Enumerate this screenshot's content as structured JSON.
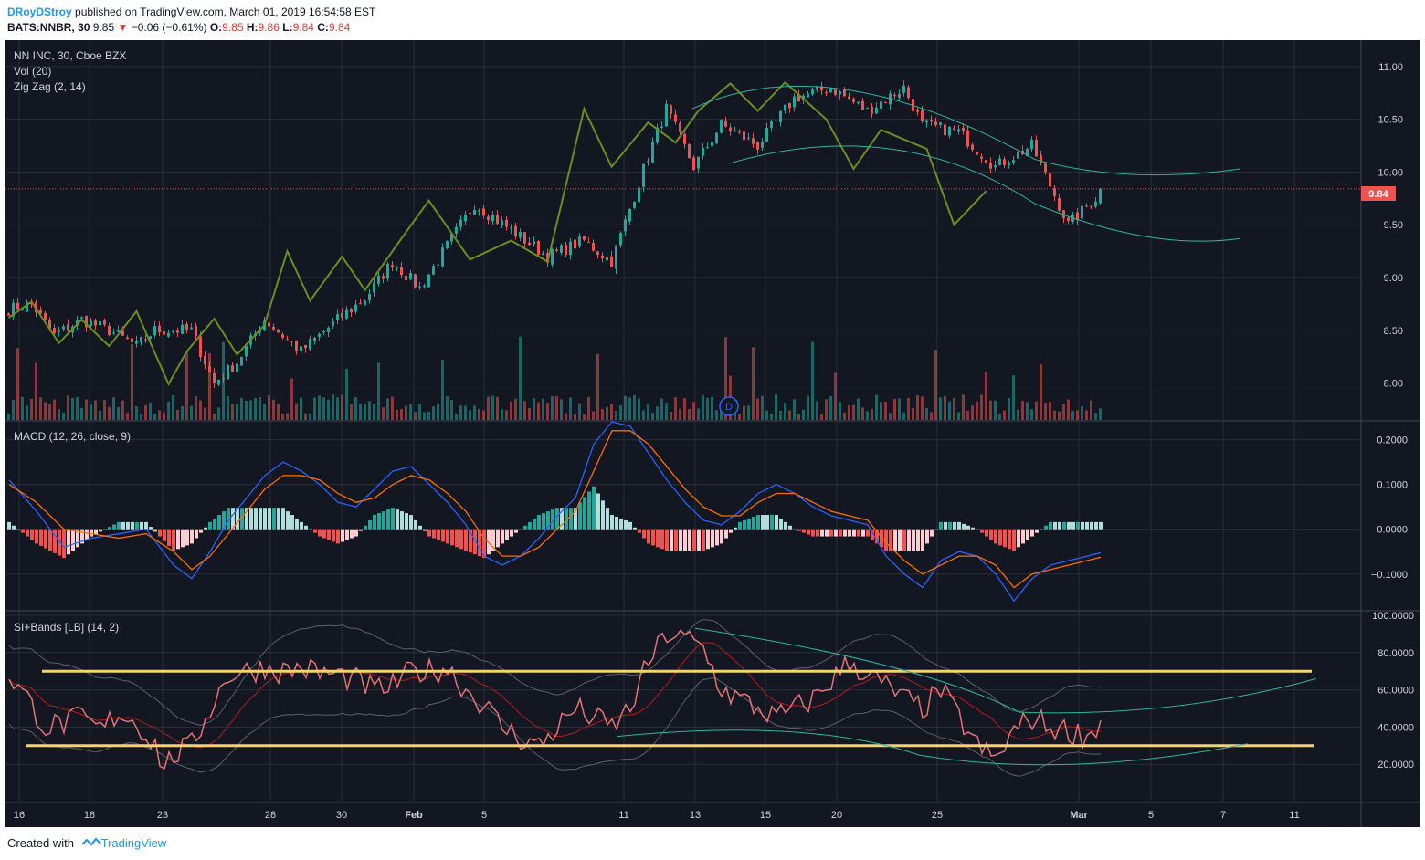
{
  "header": {
    "author": "DRoyDStroy",
    "published": "published on TradingView.com, March 01, 2019 16:54:58 EST",
    "symbol": "BATS:NNBR, 30",
    "last": "9.85",
    "change": "−0.06 (−0.61%)",
    "o_label": "O:",
    "o": "9.85",
    "h_label": "H:",
    "h": "9.86",
    "l_label": "L:",
    "l": "9.84",
    "c_label": "C:",
    "c": "9.84"
  },
  "legend": {
    "title": "NN INC, 30, Cboe BZX",
    "vol": "Vol (20)",
    "zigzag": "Zig Zag (2, 14)",
    "macd": "MACD (12, 26, close, 9)",
    "si": "SI+Bands [LB] (14, 2)",
    "vol_marker": "D"
  },
  "footer": {
    "created_with": "Created with",
    "brand": "TradingView"
  },
  "colors": {
    "background": "#131722",
    "grid": "#2a2e39",
    "up": "#26a69a",
    "down": "#ef5350",
    "zigzag": "#6b8e23",
    "channel": "#2bb5a0",
    "macd_line": "#2962ff",
    "signal_line": "#ff6d00",
    "si_line": "#e57373",
    "level_line": "#f6d36b",
    "price_tag": "#ef5350"
  },
  "chart_data": [
    {
      "type": "candlestick",
      "title": "NN INC, 30, Cboe BZX",
      "ylim": [
        7.65,
        11.25
      ],
      "y_ticks": [
        "11.00",
        "10.50",
        "10.00",
        "9.50",
        "9.00",
        "8.50",
        "8.00"
      ],
      "x_tick_labels": [
        "16",
        "18",
        "23",
        "28",
        "30",
        "Feb",
        "5",
        "11",
        "13",
        "15",
        "20",
        "25",
        "Mar",
        "5",
        "7",
        "11"
      ],
      "last_price": "9.84",
      "close_path_x": [
        0,
        5,
        10,
        16,
        22,
        28,
        32,
        40,
        45,
        50,
        56,
        64,
        72,
        78,
        84,
        90,
        96,
        102,
        110,
        118,
        126,
        132,
        140,
        144,
        150,
        156,
        164,
        172,
        180,
        188,
        196,
        200,
        208,
        216,
        224,
        232,
        240
      ],
      "close_path_y": [
        8.7,
        8.75,
        8.45,
        8.6,
        8.5,
        8.35,
        8.5,
        8.5,
        8.0,
        8.2,
        8.6,
        8.3,
        8.6,
        8.8,
        9.15,
        8.9,
        9.3,
        9.7,
        9.45,
        9.2,
        9.35,
        9.15,
        10.15,
        10.6,
        10.05,
        10.45,
        10.25,
        10.7,
        10.8,
        10.58,
        10.8,
        10.45,
        10.38,
        10.05,
        10.25,
        9.5,
        9.84
      ],
      "zigzag_x": [
        0,
        5,
        11,
        16,
        22,
        28,
        35,
        39,
        45,
        50,
        56,
        61,
        66,
        73,
        78,
        86,
        92,
        101,
        110,
        118,
        126,
        132,
        140,
        146,
        151,
        158,
        164,
        170,
        179,
        185,
        191,
        201,
        207,
        214,
        220,
        227,
        232,
        236
      ],
      "zigzag_y": [
        8.62,
        8.77,
        8.38,
        8.6,
        8.35,
        8.68,
        7.99,
        8.3,
        8.61,
        8.27,
        8.55,
        9.25,
        8.78,
        9.2,
        8.88,
        9.37,
        9.73,
        9.17,
        9.35,
        9.15,
        10.6,
        10.05,
        10.47,
        10.28,
        10.58,
        10.84,
        10.58,
        10.85,
        10.5,
        10.03,
        10.4,
        10.22,
        9.5,
        9.82,
        9.82,
        9.82,
        9.82,
        9.82
      ]
    },
    {
      "type": "bar",
      "title": "Vol (20)",
      "note": "volume histogram in price pane"
    },
    {
      "type": "line",
      "title": "MACD (12, 26, close, 9)",
      "ylim": [
        -0.18,
        0.24
      ],
      "y_ticks": [
        "0.2000",
        "0.1000",
        "0.0000",
        "−0.1000"
      ],
      "macd_x": [
        0,
        6,
        12,
        18,
        24,
        30,
        36,
        40,
        44,
        48,
        52,
        56,
        60,
        64,
        68,
        72,
        76,
        80,
        84,
        88,
        92,
        96,
        100,
        104,
        108,
        112,
        116,
        120,
        124,
        128,
        132,
        136,
        140,
        144,
        148,
        152,
        156,
        160,
        164,
        168,
        172,
        176,
        180,
        184,
        188,
        192,
        196,
        200,
        204,
        208,
        212,
        216,
        220,
        224,
        228,
        232,
        236,
        240
      ],
      "macd_y": [
        0.11,
        0.04,
        -0.04,
        -0.02,
        -0.01,
        -0.0,
        -0.08,
        -0.11,
        -0.05,
        0.02,
        0.07,
        0.12,
        0.15,
        0.13,
        0.1,
        0.06,
        0.05,
        0.09,
        0.13,
        0.14,
        0.1,
        0.06,
        0.01,
        -0.06,
        -0.08,
        -0.06,
        -0.02,
        0.03,
        0.07,
        0.19,
        0.24,
        0.23,
        0.17,
        0.11,
        0.06,
        0.02,
        0.01,
        0.04,
        0.08,
        0.1,
        0.08,
        0.05,
        0.03,
        0.02,
        0.01,
        -0.06,
        -0.1,
        -0.13,
        -0.07,
        -0.05,
        -0.06,
        -0.1,
        -0.16,
        -0.11,
        -0.08,
        -0.07,
        -0.06,
        -0.05
      ],
      "signal_x": [
        0,
        6,
        12,
        18,
        24,
        30,
        36,
        40,
        44,
        48,
        52,
        56,
        60,
        64,
        68,
        72,
        76,
        80,
        84,
        88,
        92,
        96,
        100,
        104,
        108,
        112,
        116,
        120,
        124,
        128,
        132,
        136,
        140,
        144,
        148,
        152,
        156,
        160,
        164,
        168,
        172,
        176,
        180,
        184,
        188,
        192,
        196,
        200,
        204,
        208,
        212,
        216,
        220,
        224,
        228,
        232,
        236,
        240
      ],
      "signal_y": [
        0.1,
        0.06,
        0.0,
        -0.01,
        -0.02,
        -0.01,
        -0.05,
        -0.09,
        -0.06,
        -0.01,
        0.04,
        0.09,
        0.12,
        0.12,
        0.11,
        0.08,
        0.06,
        0.07,
        0.1,
        0.12,
        0.11,
        0.08,
        0.04,
        -0.02,
        -0.06,
        -0.06,
        -0.04,
        0.0,
        0.04,
        0.13,
        0.22,
        0.22,
        0.19,
        0.14,
        0.09,
        0.05,
        0.03,
        0.03,
        0.06,
        0.08,
        0.08,
        0.06,
        0.04,
        0.03,
        0.02,
        -0.03,
        -0.07,
        -0.1,
        -0.08,
        -0.06,
        -0.06,
        -0.08,
        -0.13,
        -0.1,
        -0.09,
        -0.08,
        -0.07,
        -0.06
      ],
      "histogram_sign_hint": "MACD minus signal"
    },
    {
      "type": "line",
      "title": "SI+Bands [LB] (14, 2)",
      "ylim": [
        0,
        100
      ],
      "y_ticks": [
        "100.0000",
        "80.0000",
        "60.0000",
        "40.0000",
        "20.0000"
      ],
      "si_x": [
        0,
        4,
        8,
        12,
        16,
        20,
        24,
        28,
        32,
        34,
        36,
        40,
        44,
        48,
        52,
        56,
        60,
        64,
        68,
        72,
        76,
        80,
        84,
        88,
        92,
        96,
        100,
        104,
        108,
        112,
        116,
        120,
        124,
        128,
        132,
        136,
        140,
        144,
        148,
        152,
        156,
        160,
        164,
        168,
        172,
        176,
        180,
        184,
        188,
        192,
        196,
        200,
        204,
        208,
        212,
        216,
        220,
        224,
        228,
        232,
        236,
        240
      ],
      "si_y": [
        68,
        55,
        40,
        42,
        45,
        38,
        48,
        42,
        30,
        18,
        25,
        30,
        50,
        68,
        70,
        72,
        70,
        72,
        69,
        68,
        65,
        60,
        62,
        70,
        70,
        72,
        60,
        52,
        40,
        34,
        30,
        40,
        50,
        45,
        40,
        50,
        75,
        90,
        88,
        82,
        60,
        55,
        50,
        45,
        50,
        55,
        65,
        75,
        68,
        62,
        55,
        50,
        60,
        45,
        30,
        22,
        38,
        45,
        40,
        38,
        35,
        45
      ],
      "levels": [
        70,
        30
      ]
    }
  ]
}
